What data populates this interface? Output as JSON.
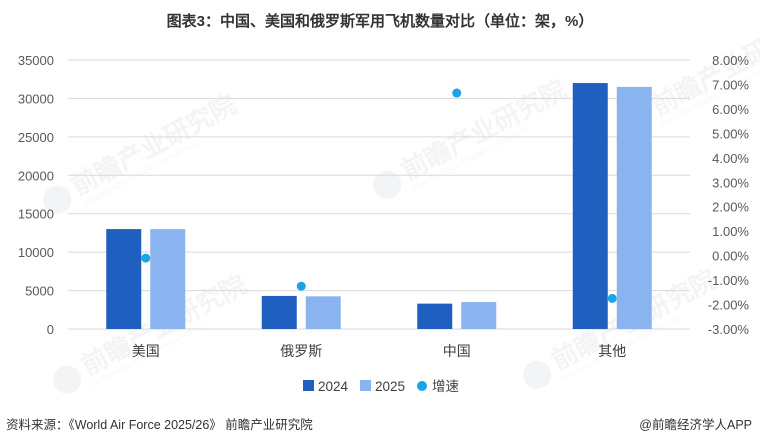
{
  "title": "图表3：中国、美国和俄罗斯军用飞机数量对比（单位：架，%）",
  "footer": {
    "source": "资料来源：《World Air Force 2025/26》 前瞻产业研究院",
    "brand": "@前瞻经济学人APP"
  },
  "watermark": {
    "main": "前瞻产业研究院",
    "sub": "QIANZHAN INDUSTRY RESEARCH INSTITUTE"
  },
  "chart_data": {
    "type": "bar",
    "categories": [
      "美国",
      "俄罗斯",
      "中国",
      "其他"
    ],
    "series": [
      {
        "name": "2024",
        "kind": "bar",
        "axis": "left",
        "color": "#1f5fbf",
        "values": [
          13000,
          4300,
          3300,
          32000
        ]
      },
      {
        "name": "2025",
        "kind": "bar",
        "axis": "left",
        "color": "#8ab4f0",
        "values": [
          13000,
          4250,
          3500,
          31500
        ]
      },
      {
        "name": "增速",
        "kind": "scatter",
        "axis": "right",
        "color": "#1aa3e8",
        "values": [
          -0.1,
          -1.25,
          6.65,
          -1.75
        ]
      }
    ],
    "y_left": {
      "min": 0,
      "max": 35000,
      "ticks": [
        "35000",
        "30000",
        "25000",
        "20000",
        "15000",
        "10000",
        "5000",
        "0"
      ]
    },
    "y_right": {
      "min": -3,
      "max": 8,
      "unit": "%",
      "ticks": [
        "8.00%",
        "7.00%",
        "6.00%",
        "5.00%",
        "4.00%",
        "3.00%",
        "2.00%",
        "1.00%",
        "0.00%",
        "-1.00%",
        "-2.00%",
        "-3.00%"
      ]
    },
    "grid": true,
    "legend": "bottom"
  }
}
